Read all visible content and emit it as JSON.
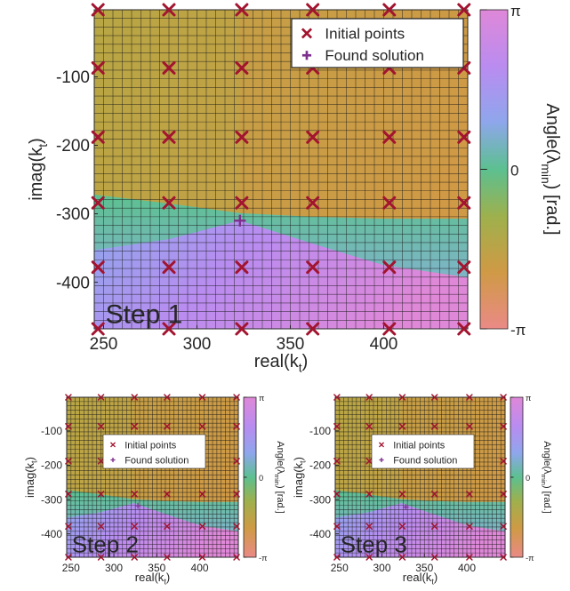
{
  "chart_data": [
    {
      "type": "heatmap",
      "panel_label": "Step 1",
      "xlabel_main": "real(k",
      "xlabel_sub": "t",
      "xlabel_end": ")",
      "ylabel_main": "imag(k",
      "ylabel_sub": "t",
      "ylabel_end": ")",
      "xlim": [
        245,
        445
      ],
      "ylim": [
        -468,
        -2
      ],
      "xticks": [
        250,
        300,
        350,
        400
      ],
      "yticks": [
        -100,
        -200,
        -300,
        -400
      ],
      "colorbar": {
        "label_prefix": "Angle(λ",
        "label_sub": "min",
        "label_suffix": ") [rad.]",
        "ticks": [
          "π",
          "0",
          "-π"
        ],
        "range": [
          -3.14159,
          3.14159
        ]
      },
      "legend": {
        "position": "top-right",
        "entries": [
          {
            "label": "Initial points",
            "marker": "x",
            "color": "#a2142f"
          },
          {
            "label": "Found solution",
            "marker": "+",
            "color": "#7e2f8e"
          }
        ]
      },
      "initial_points": {
        "x": [
          247,
          285,
          324,
          362,
          403,
          443
        ],
        "y": [
          -2,
          -87,
          -188,
          -284,
          -378,
          -468
        ]
      },
      "found_solution": {
        "x": 323,
        "y": -310
      },
      "boundaries": {
        "x": [
          245,
          285,
          323,
          360,
          400,
          445
        ],
        "upper_y": [
          -272,
          -285,
          -299,
          -304,
          -307,
          -307
        ],
        "lower_y": [
          -353,
          -337,
          -310,
          -342,
          -375,
          -393
        ],
        "band_bottom_y": [
          -372,
          -360,
          -340,
          -345,
          -375,
          -393
        ]
      },
      "grid": true
    },
    {
      "type": "heatmap",
      "panel_label": "Step 2",
      "xlabel_main": "real(k",
      "xlabel_sub": "t",
      "xlabel_end": ")",
      "ylabel_main": "imag(k",
      "ylabel_sub": "t",
      "ylabel_end": ")",
      "xlim": [
        245,
        445
      ],
      "ylim": [
        -468,
        -2
      ],
      "xticks": [
        250,
        300,
        350,
        400
      ],
      "yticks": [
        -100,
        -200,
        -300,
        -400
      ],
      "colorbar": {
        "label_prefix": "Angle(λ",
        "label_sub": "min",
        "label_suffix": ") [rad.]",
        "ticks": [
          "π",
          "0",
          "-π"
        ],
        "range": [
          -3.14159,
          3.14159
        ]
      },
      "legend": {
        "position": "middle",
        "entries": [
          {
            "label": "Initial points",
            "marker": "x",
            "color": "#a2142f"
          },
          {
            "label": "Found solution",
            "marker": "+",
            "color": "#7e2f8e"
          }
        ]
      },
      "initial_points": {
        "x": [
          247,
          285,
          324,
          362,
          403,
          443
        ],
        "y": [
          -2,
          -87,
          -188,
          -284,
          -378,
          -468
        ]
      },
      "found_solution": {
        "x": 328,
        "y": -318
      },
      "boundaries": {
        "x": [
          245,
          285,
          323,
          360,
          400,
          445
        ],
        "upper_y": [
          -272,
          -285,
          -299,
          -304,
          -307,
          -307
        ],
        "lower_y": [
          -353,
          -337,
          -310,
          -342,
          -375,
          -393
        ],
        "band_bottom_y": [
          -372,
          -360,
          -340,
          -345,
          -375,
          -393
        ]
      },
      "grid": true
    },
    {
      "type": "heatmap",
      "panel_label": "Step 3",
      "xlabel_main": "real(k",
      "xlabel_sub": "t",
      "xlabel_end": ")",
      "ylabel_main": "imag(k",
      "ylabel_sub": "t",
      "ylabel_end": ")",
      "xlim": [
        245,
        445
      ],
      "ylim": [
        -468,
        -2
      ],
      "xticks": [
        250,
        300,
        350,
        400
      ],
      "yticks": [
        -100,
        -200,
        -300,
        -400
      ],
      "colorbar": {
        "label_prefix": "Angle(λ",
        "label_sub": "min",
        "label_suffix": ") [rad.]",
        "ticks": [
          "π",
          "0",
          "-π"
        ],
        "range": [
          -3.14159,
          3.14159
        ]
      },
      "legend": {
        "position": "middle",
        "entries": [
          {
            "label": "Initial points",
            "marker": "x",
            "color": "#a2142f"
          },
          {
            "label": "Found solution",
            "marker": "+",
            "color": "#7e2f8e"
          }
        ]
      },
      "initial_points": {
        "x": [
          247,
          285,
          324,
          362,
          403,
          443
        ],
        "y": [
          -2,
          -87,
          -188,
          -284,
          -378,
          -468
        ]
      },
      "found_solution": {
        "x": 328,
        "y": -322
      },
      "boundaries": {
        "x": [
          245,
          285,
          323,
          360,
          400,
          445
        ],
        "upper_y": [
          -272,
          -285,
          -299,
          -304,
          -307,
          -307
        ],
        "lower_y": [
          -353,
          -337,
          -310,
          -342,
          -375,
          -393
        ],
        "band_bottom_y": [
          -372,
          -360,
          -340,
          -345,
          -375,
          -393
        ]
      },
      "grid": true
    }
  ],
  "colors": {
    "olive": "#b8a644",
    "amber": "#cf9a45",
    "teal": "#5cc090",
    "blue": "#8fa6ec",
    "violet": "#b98cf0",
    "pink": "#df88d8",
    "marker_initial": "#a2142f",
    "marker_found": "#7e2f8e"
  }
}
